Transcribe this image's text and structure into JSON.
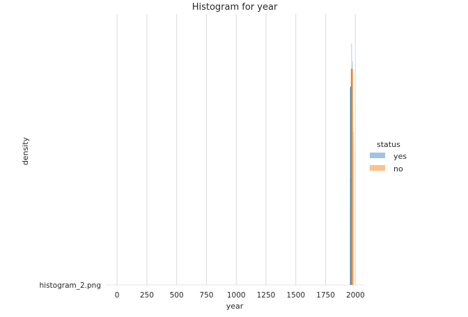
{
  "chart_data": {
    "type": "bar",
    "title": "Histogram for year",
    "xlabel": "year",
    "ylabel": "density",
    "y_tick_label": "histogram_2.png",
    "xlim": [
      -100,
      2080
    ],
    "x_ticks": [
      0,
      250,
      500,
      750,
      1000,
      1250,
      1500,
      1750,
      2000
    ],
    "grid": "vertical",
    "legend": {
      "title": "status",
      "placement": "right",
      "entries": [
        "yes",
        "no"
      ]
    },
    "series": [
      {
        "name": "yes",
        "color": "#9ec4e0",
        "bins": [
          {
            "x": 1958,
            "density": 0.42
          },
          {
            "x": 1968,
            "density": 0.95
          },
          {
            "x": 1976,
            "density": 0.88
          },
          {
            "x": 1984,
            "density": 0.6
          }
        ]
      },
      {
        "name": "no",
        "color": "#ffc08a",
        "bins": [
          {
            "x": 1958,
            "density": 0.3
          },
          {
            "x": 1968,
            "density": 0.85
          },
          {
            "x": 1976,
            "density": 0.7
          },
          {
            "x": 1984,
            "density": 0.55
          }
        ]
      }
    ],
    "overlay_colors": {
      "yes": "#1f77b4",
      "no": "#ff7f0e"
    },
    "ylim": [
      0,
      1
    ]
  }
}
